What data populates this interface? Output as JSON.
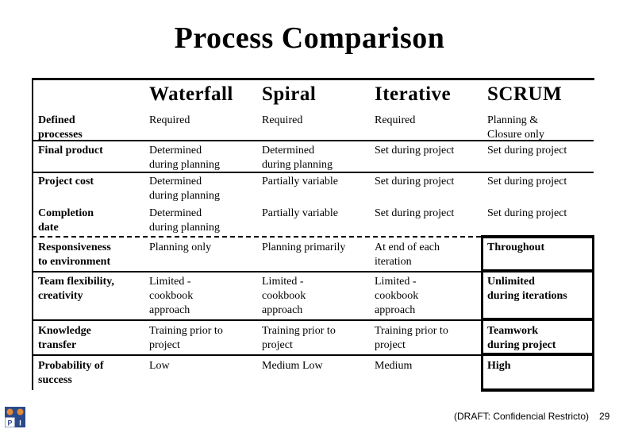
{
  "page": {
    "title": "Process Comparison",
    "footer_text": "(DRAFT: Confidencial Restricto)",
    "page_number": "29",
    "logo_letters": [
      "P",
      "I"
    ]
  },
  "table": {
    "columns": [
      "Waterfall",
      "Spiral",
      "Iterative",
      "SCRUM"
    ],
    "rows": [
      {
        "label": "Defined\nprocesses",
        "cells": [
          "Required",
          "Required",
          "Required",
          "Planning &\nClosure only"
        ]
      },
      {
        "label": "Final product",
        "cells": [
          "Determined\nduring  planning",
          "Determined\nduring planning",
          "Set during project",
          "Set during project"
        ]
      },
      {
        "label": "Project cost",
        "cells": [
          "Determined\nduring planning",
          "Partially variable",
          "Set during project",
          "Set during project"
        ]
      },
      {
        "label": "Completion\ndate",
        "cells": [
          "Determined\nduring planning",
          "Partially variable",
          "Set during project",
          "Set during project"
        ]
      },
      {
        "label": "Responsiveness\nto environment",
        "cells": [
          "Planning only",
          "Planning primarily",
          "At end of each\niteration",
          "Throughout"
        ]
      },
      {
        "label": "Team flexibility,\ncreativity",
        "cells": [
          "Limited -\ncookbook\napproach",
          "Limited -\ncookbook\napproach",
          "Limited -\ncookbook\napproach",
          "Unlimited\nduring iterations"
        ]
      },
      {
        "label": "Knowledge\ntransfer",
        "cells": [
          "Training prior to\nproject",
          "Training prior to\nproject",
          "Training prior to\nproject",
          "Teamwork\nduring project"
        ]
      },
      {
        "label": "Probability of\nsuccess",
        "cells": [
          "Low",
          "Medium Low",
          "Medium",
          "High"
        ]
      }
    ]
  }
}
